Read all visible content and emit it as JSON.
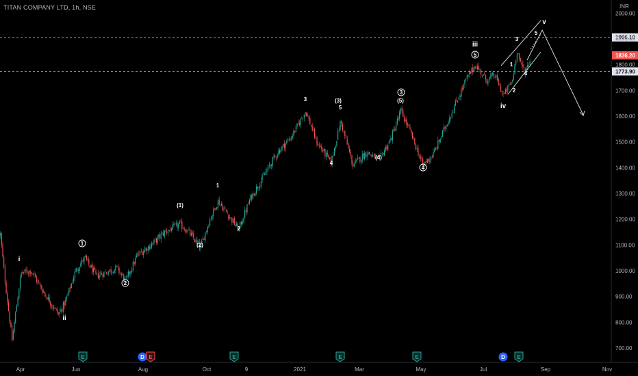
{
  "header": {
    "symbol": "TITAN COMPANY LTD",
    "interval": "1h",
    "exchange": "NSE"
  },
  "currency_label": "INR",
  "colors": {
    "background": "#000000",
    "up": "#26a69a",
    "down": "#ef5350",
    "line": "#b2b5be",
    "current_price": "#f05350",
    "event_badge": "#26a69a",
    "dividend_badge": "#2962ff"
  },
  "chart_data": {
    "type": "candlestick",
    "ylim": [
      660,
      2030
    ],
    "y_ticks": [
      700,
      800,
      900,
      1000,
      1100,
      1200,
      1300,
      1400,
      1500,
      1600,
      1700,
      1800,
      1900,
      2000
    ],
    "y_tick_labels": [
      "700.00",
      "800.00",
      "900.00",
      "1000.00",
      "1100.00",
      "1200.00",
      "1300.00",
      "1400.00",
      "1500.00",
      "1600.00",
      "1700.00",
      "1800.00",
      "1900.00",
      "2000.00"
    ],
    "x_labels": [
      "Apr",
      "Jun",
      "Aug",
      "Oct",
      "9",
      "2021",
      "Mar",
      "May",
      "Jul",
      "Sep",
      "Nov"
    ],
    "price_path": [
      [
        0,
        1140
      ],
      [
        6,
        980
      ],
      [
        17,
        730
      ],
      [
        30,
        990
      ],
      [
        45,
        1000
      ],
      [
        60,
        930
      ],
      [
        85,
        830
      ],
      [
        95,
        880
      ],
      [
        110,
        1000
      ],
      [
        123,
        1050
      ],
      [
        140,
        980
      ],
      [
        160,
        1000
      ],
      [
        170,
        1010
      ],
      [
        183,
        960
      ],
      [
        200,
        1060
      ],
      [
        220,
        1100
      ],
      [
        240,
        1150
      ],
      [
        262,
        1180
      ],
      [
        275,
        1150
      ],
      [
        292,
        1090
      ],
      [
        306,
        1200
      ],
      [
        318,
        1270
      ],
      [
        332,
        1220
      ],
      [
        348,
        1160
      ],
      [
        365,
        1280
      ],
      [
        385,
        1370
      ],
      [
        405,
        1460
      ],
      [
        425,
        1520
      ],
      [
        446,
        1620
      ],
      [
        462,
        1500
      ],
      [
        483,
        1420
      ],
      [
        497,
        1580
      ],
      [
        515,
        1410
      ],
      [
        535,
        1460
      ],
      [
        553,
        1430
      ],
      [
        570,
        1510
      ],
      [
        585,
        1620
      ],
      [
        600,
        1530
      ],
      [
        617,
        1410
      ],
      [
        632,
        1450
      ],
      [
        660,
        1620
      ],
      [
        680,
        1740
      ],
      [
        694,
        1800
      ],
      [
        710,
        1740
      ],
      [
        722,
        1760
      ],
      [
        735,
        1680
      ],
      [
        748,
        1740
      ],
      [
        755,
        1860
      ],
      [
        760,
        1800
      ],
      [
        767,
        1775
      ],
      [
        775,
        1830
      ]
    ],
    "price_lines": [
      {
        "value": 1906.1,
        "label": "1906.10",
        "style": "dashed"
      },
      {
        "value": 1836.2,
        "label": "1836.20",
        "style": "current"
      },
      {
        "value": 1773.9,
        "label": "1773.90",
        "style": "dashed"
      }
    ],
    "wave_labels": [
      {
        "text": "i",
        "x": 28,
        "y": 382,
        "circled": false
      },
      {
        "text": "ii",
        "x": 94,
        "y": 468,
        "circled": false
      },
      {
        "text": "1",
        "x": 120,
        "y": 359,
        "circled": true
      },
      {
        "text": "2",
        "x": 183,
        "y": 417,
        "circled": true
      },
      {
        "text": "(1)",
        "x": 263,
        "y": 303,
        "circled": false
      },
      {
        "text": "(2)",
        "x": 292,
        "y": 361,
        "circled": false
      },
      {
        "text": "1",
        "x": 318,
        "y": 274,
        "circled": false
      },
      {
        "text": "2",
        "x": 349,
        "y": 337,
        "circled": false
      },
      {
        "text": "3",
        "x": 446,
        "y": 148,
        "circled": false
      },
      {
        "text": "(3)",
        "x": 494,
        "y": 150,
        "circled": false
      },
      {
        "text": "5",
        "x": 497,
        "y": 160,
        "circled": false
      },
      {
        "text": "4",
        "x": 484,
        "y": 241,
        "circled": false
      },
      {
        "text": "(4)",
        "x": 553,
        "y": 233,
        "circled": false
      },
      {
        "text": "3",
        "x": 586,
        "y": 138,
        "circled": true
      },
      {
        "text": "(5)",
        "x": 585,
        "y": 150,
        "circled": false
      },
      {
        "text": "4",
        "x": 618,
        "y": 248,
        "circled": true
      },
      {
        "text": "iii",
        "x": 694,
        "y": 68,
        "circled": false
      },
      {
        "text": "5",
        "x": 694,
        "y": 83,
        "circled": true
      },
      {
        "text": "iv",
        "x": 735,
        "y": 158,
        "circled": false
      },
      {
        "text": "1",
        "x": 747,
        "y": 97,
        "circled": false
      },
      {
        "text": "2",
        "x": 751,
        "y": 135,
        "circled": false
      },
      {
        "text": "3",
        "x": 755,
        "y": 60,
        "circled": false
      },
      {
        "text": "4",
        "x": 768,
        "y": 110,
        "circled": false
      },
      {
        "text": "5",
        "x": 783,
        "y": 51,
        "circled": false
      },
      {
        "text": "v",
        "x": 795,
        "y": 35,
        "circled": false
      }
    ],
    "event_badges": [
      {
        "text": "E",
        "type": "earnings"
      },
      {
        "text": "D",
        "type": "dividend"
      },
      {
        "text": "E",
        "type": "earnings-red"
      },
      {
        "text": "E",
        "type": "earnings"
      },
      {
        "text": "E",
        "type": "earnings"
      },
      {
        "text": "E",
        "type": "earnings"
      },
      {
        "text": "D",
        "type": "dividend"
      },
      {
        "text": "E",
        "type": "earnings"
      }
    ]
  }
}
